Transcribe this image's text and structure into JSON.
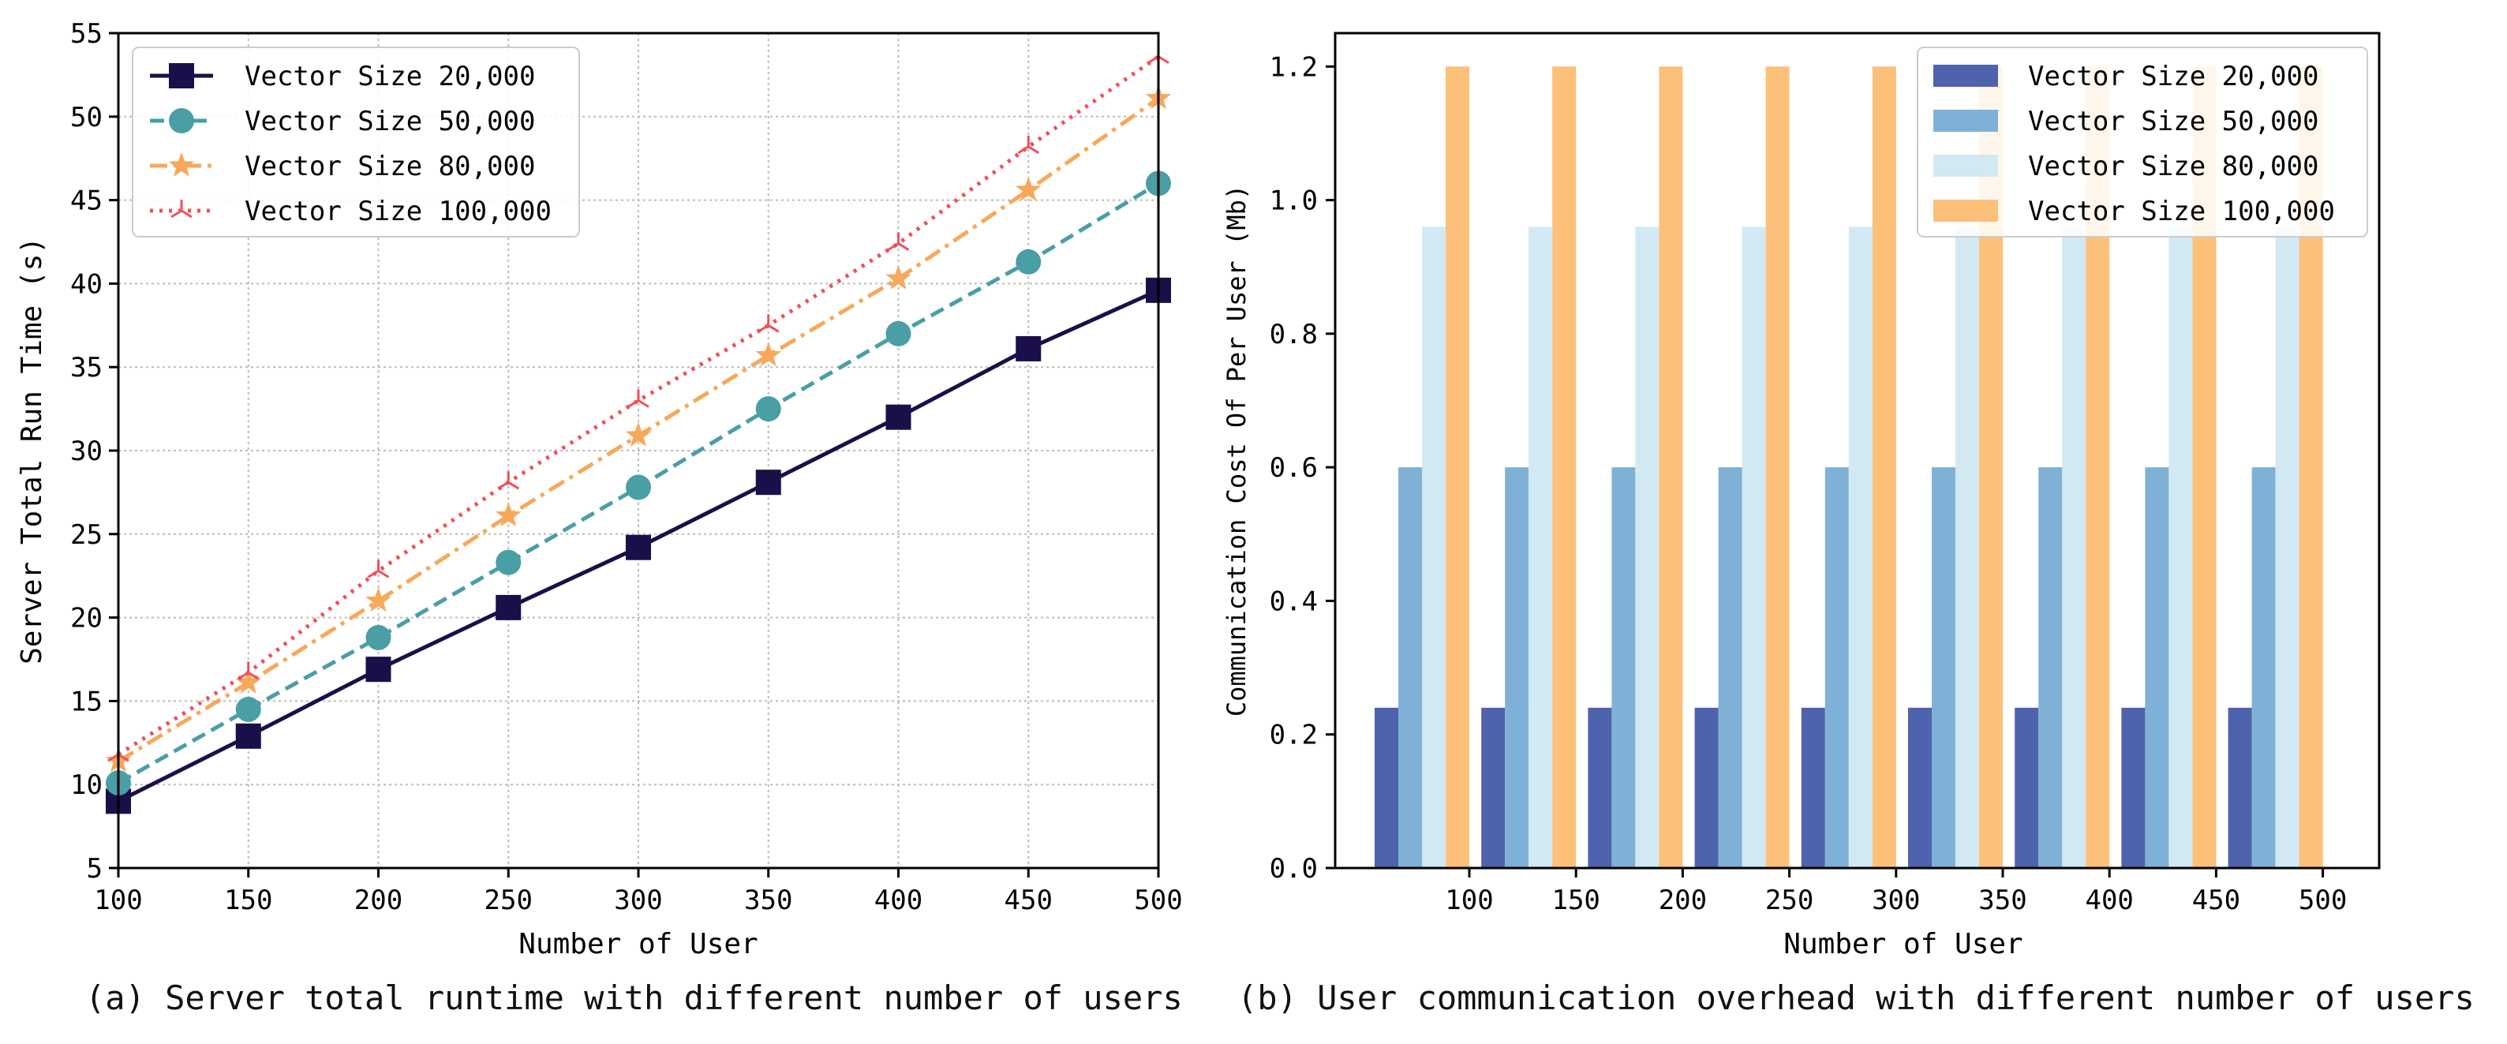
{
  "captions": {
    "a": "(a) Server total runtime with different number of users",
    "b": "(b) User communication overhead with different number of users"
  },
  "chart_data": [
    {
      "type": "line",
      "xlabel": "Number of User",
      "ylabel": "Server Total Run Time (s)",
      "xlim": [
        100,
        500
      ],
      "ylim": [
        5,
        55
      ],
      "xticks": [
        100,
        150,
        200,
        250,
        300,
        350,
        400,
        450,
        500
      ],
      "yticks": [
        5,
        10,
        15,
        20,
        25,
        30,
        35,
        40,
        45,
        50,
        55
      ],
      "grid": true,
      "legend_position": "top-left",
      "x": [
        100,
        150,
        200,
        250,
        300,
        350,
        400,
        450,
        500
      ],
      "series": [
        {
          "name": "Vector Size 20,000",
          "color": "#1b0f4a",
          "marker": "square",
          "dash": "solid",
          "values": [
            9.0,
            12.9,
            16.9,
            20.6,
            24.2,
            28.1,
            32.0,
            36.1,
            39.6
          ]
        },
        {
          "name": "Vector Size 50,000",
          "color": "#4a9ea6",
          "marker": "circle",
          "dash": "dashed",
          "values": [
            10.1,
            14.5,
            18.8,
            23.3,
            27.8,
            32.5,
            37.0,
            41.3,
            46.0
          ]
        },
        {
          "name": "Vector Size 80,000",
          "color": "#f7a85a",
          "marker": "star",
          "dash": "dashdot",
          "values": [
            11.4,
            16.1,
            21.0,
            26.1,
            30.9,
            35.7,
            40.3,
            45.6,
            51.1
          ]
        },
        {
          "name": "Vector Size 100,000",
          "color": "#f0505a",
          "marker": "tri",
          "dash": "dotted",
          "values": [
            11.8,
            16.7,
            22.8,
            28.1,
            33.0,
            37.5,
            42.4,
            48.2,
            53.6
          ]
        }
      ]
    },
    {
      "type": "bar",
      "xlabel": "Number of User",
      "ylabel": "Communication Cost Of Per User (Mb)",
      "ylim": [
        0,
        1.25
      ],
      "yticks": [
        "0.0",
        "0.2",
        "0.4",
        "0.6",
        "0.8",
        "1.0",
        "1.2"
      ],
      "grid": false,
      "legend_position": "top-right",
      "categories": [
        "100",
        "150",
        "200",
        "250",
        "300",
        "350",
        "400",
        "450",
        "500"
      ],
      "series": [
        {
          "name": "Vector Size 20,000",
          "color": "#4e62ad",
          "values": [
            0.24,
            0.24,
            0.24,
            0.24,
            0.24,
            0.24,
            0.24,
            0.24,
            0.24
          ]
        },
        {
          "name": "Vector Size 50,000",
          "color": "#7fb1d6",
          "values": [
            0.6,
            0.6,
            0.6,
            0.6,
            0.6,
            0.6,
            0.6,
            0.6,
            0.6
          ]
        },
        {
          "name": "Vector Size 80,000",
          "color": "#d2e9f3",
          "values": [
            0.96,
            0.96,
            0.96,
            0.96,
            0.96,
            0.96,
            0.96,
            0.96,
            0.96
          ]
        },
        {
          "name": "Vector Size 100,000",
          "color": "#fcc07a",
          "values": [
            1.2,
            1.2,
            1.2,
            1.2,
            1.2,
            1.2,
            1.2,
            1.2,
            1.2
          ]
        }
      ]
    }
  ]
}
